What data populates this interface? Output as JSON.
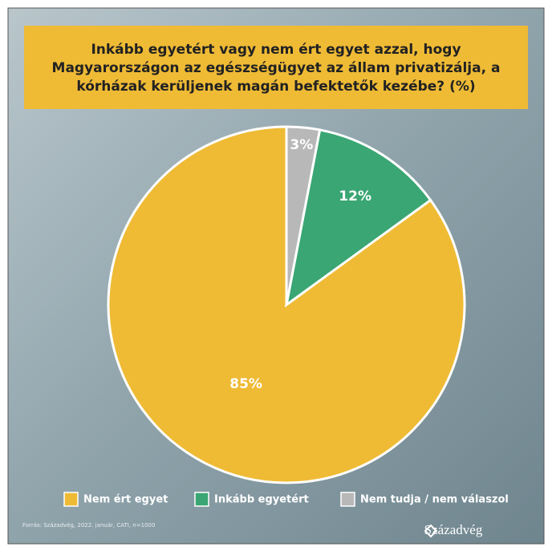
{
  "chart_data": {
    "type": "pie",
    "title": "Inkább egyetért vagy nem ért egyet azzal, hogy Magyarországon az egészségügyet az állam privatizálja, a kórházak kerüljenek magán befektetők kezébe? (%)",
    "series": [
      {
        "name": "Nem ért egyet",
        "color": "#efbb35",
        "value": 85,
        "value_label": "85%"
      },
      {
        "name": "Inkább egyetért",
        "color": "#3aa673",
        "value": 12,
        "value_label": "12%"
      },
      {
        "name": "Nem tudja / nem válaszol",
        "color": "#b8b8b8",
        "value": 3,
        "value_label": "3%"
      }
    ],
    "source": "Forrás: Századvég, 2022. január, CATI, n=1000",
    "logo": "Századvég"
  }
}
